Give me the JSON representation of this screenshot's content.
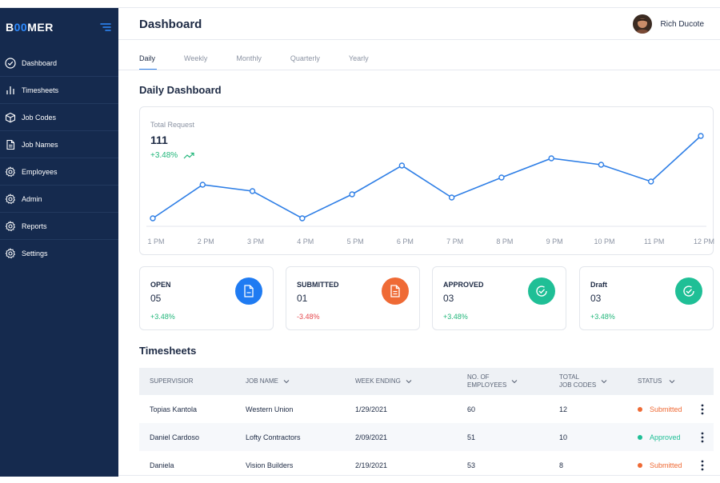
{
  "app": {
    "logo": {
      "prefix": "B",
      "accent": "00",
      "suffix": "MER"
    }
  },
  "sidebar": {
    "items": [
      {
        "label": "Dashboard",
        "icon": "check-circle-icon"
      },
      {
        "label": "Timesheets",
        "icon": "bar-chart-icon"
      },
      {
        "label": "Job Codes",
        "icon": "box-icon"
      },
      {
        "label": "Job Names",
        "icon": "document-icon"
      },
      {
        "label": "Employees",
        "icon": "gear-icon"
      },
      {
        "label": "Admin",
        "icon": "gear-icon"
      },
      {
        "label": "Reports",
        "icon": "gear-icon"
      },
      {
        "label": "Settings",
        "icon": "gear-icon"
      }
    ]
  },
  "header": {
    "title": "Dashboard",
    "user_name": "Rich Ducote"
  },
  "tabs": [
    {
      "label": "Daily",
      "active": true
    },
    {
      "label": "Weekly",
      "active": false
    },
    {
      "label": "Monthly",
      "active": false
    },
    {
      "label": "Quarterly",
      "active": false
    },
    {
      "label": "Yearly",
      "active": false
    }
  ],
  "daily_dashboard": {
    "title": "Daily Dashboard",
    "chart_card": {
      "label": "Total Request",
      "value": "111",
      "change": "+3.48%"
    }
  },
  "chart_data": {
    "type": "line",
    "title": "",
    "xlabel": "",
    "ylabel": "",
    "grid": false,
    "categories": [
      "1 PM",
      "2 PM",
      "3 PM",
      "4 PM",
      "5 PM",
      "6 PM",
      "7 PM",
      "8 PM",
      "9 PM",
      "10 PM",
      "11 PM",
      "12 PM"
    ],
    "series": [
      {
        "values": [
          0,
          42,
          34,
          0,
          30,
          66,
          26,
          51,
          75,
          67,
          46,
          103
        ]
      }
    ],
    "ylim": [
      0,
      111
    ],
    "color": "#2f7fe6"
  },
  "stats": [
    {
      "label": "OPEN",
      "value": "05",
      "change": "+3.48%",
      "trend": "pos",
      "icon": "document-icon",
      "color": "#1f7bf2"
    },
    {
      "label": "SUBMITTED",
      "value": "01",
      "change": "-3.48%",
      "trend": "neg",
      "icon": "document-icon",
      "color": "#ef6a35"
    },
    {
      "label": "APPROVED",
      "value": "03",
      "change": "+3.48%",
      "trend": "pos",
      "icon": "check-circle-icon",
      "color": "#1fbf96"
    },
    {
      "label": "Draft",
      "value": "03",
      "change": "+3.48%",
      "trend": "pos",
      "icon": "check-circle-icon",
      "color": "#1fbf96"
    }
  ],
  "timesheets": {
    "title": "Timesheets",
    "columns": {
      "supervisor": "SUPERVISIOR",
      "job_name": "JOB NAME",
      "week_ending": "WEEK ENDING",
      "employees_1": "NO. OF",
      "employees_2": "EMPLOYEES",
      "job_codes_1": "TOTAL",
      "job_codes_2": "JOB CODES",
      "status": "STATUS"
    },
    "rows": [
      {
        "supervisor": "Topias Kantola",
        "job_name": "Western Union",
        "week_ending": "1/29/2021",
        "employees": "60",
        "job_codes": "12",
        "status": "Submitted",
        "status_color": "#ef6a35"
      },
      {
        "supervisor": "Daniel Cardoso",
        "job_name": "Lofty Contractors",
        "week_ending": "2/09/2021",
        "employees": "51",
        "job_codes": "10",
        "status": "Approved",
        "status_color": "#1fbf96"
      },
      {
        "supervisor": "Daniela",
        "job_name": "Vision Builders",
        "week_ending": "2/19/2021",
        "employees": "53",
        "job_codes": "8",
        "status": "Submitted",
        "status_color": "#ef6a35"
      }
    ]
  }
}
